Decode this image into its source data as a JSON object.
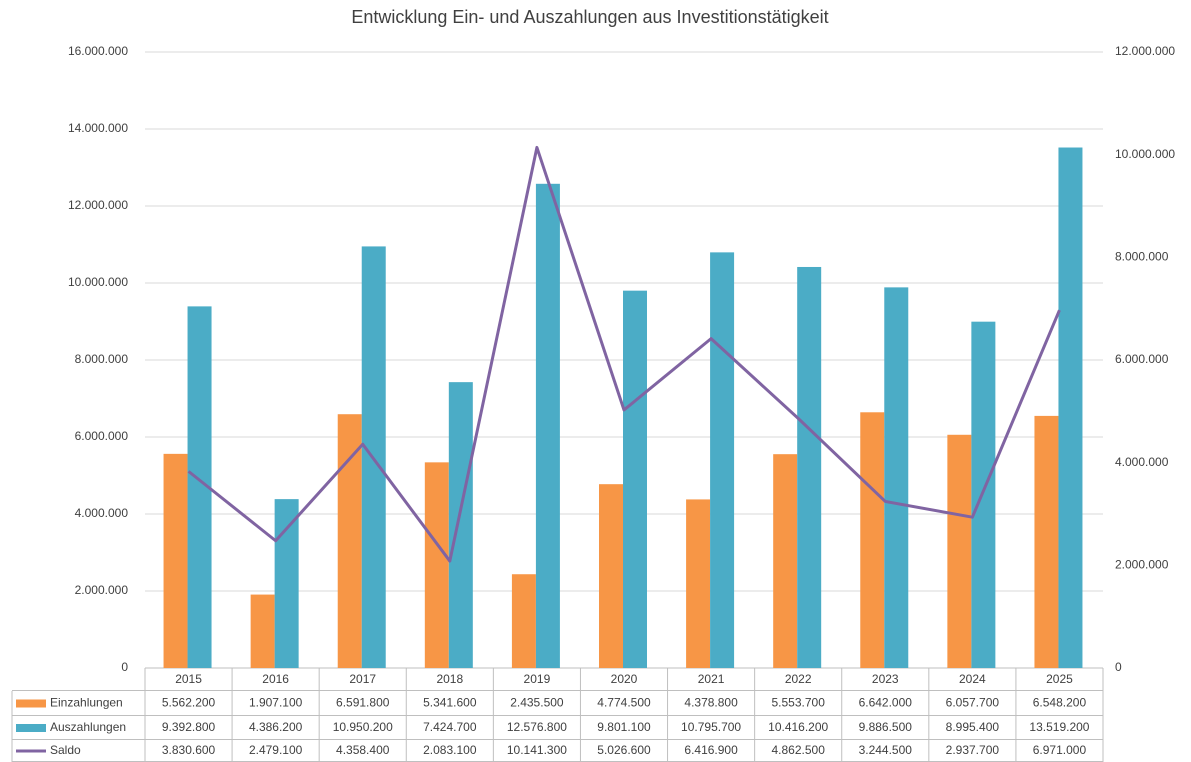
{
  "chart_data": {
    "type": "bar",
    "title": "Entwicklung Ein- und Auszahlungen aus Investitionstätigkeit",
    "categories": [
      "2015",
      "2016",
      "2017",
      "2018",
      "2019",
      "2020",
      "2021",
      "2022",
      "2023",
      "2024",
      "2025"
    ],
    "series": [
      {
        "name": "Einzahlungen",
        "type": "bar",
        "color": "#f79646",
        "values": [
          5562200,
          1907100,
          6591800,
          5341600,
          2435500,
          4774500,
          4378800,
          5553700,
          6642000,
          6057700,
          6548200
        ],
        "value_labels": [
          "5.562.200",
          "1.907.100",
          "6.591.800",
          "5.341.600",
          "2.435.500",
          "4.774.500",
          "4.378.800",
          "5.553.700",
          "6.642.000",
          "6.057.700",
          "6.548.200"
        ]
      },
      {
        "name": "Auszahlungen",
        "type": "bar",
        "color": "#4bacc6",
        "values": [
          9392800,
          4386200,
          10950200,
          7424700,
          12576800,
          9801100,
          10795700,
          10416200,
          9886500,
          8995400,
          13519200
        ],
        "value_labels": [
          "9.392.800",
          "4.386.200",
          "10.950.200",
          "7.424.700",
          "12.576.800",
          "9.801.100",
          "10.795.700",
          "10.416.200",
          "9.886.500",
          "8.995.400",
          "13.519.200"
        ]
      },
      {
        "name": "Saldo",
        "type": "line",
        "axis": "y2",
        "color": "#8064a2",
        "values": [
          3830600,
          2479100,
          4358400,
          2083100,
          10141300,
          5026600,
          6416900,
          4862500,
          3244500,
          2937700,
          6971000
        ],
        "value_labels": [
          "3.830.600",
          "2.479.100",
          "4.358.400",
          "2.083.100",
          "10.141.300",
          "5.026.600",
          "6.416.900",
          "4.862.500",
          "3.244.500",
          "2.937.700",
          "6.971.000"
        ]
      }
    ],
    "ylim": [
      0,
      16000000
    ],
    "yticks": [
      0,
      {
        "value": 2000000,
        "label": "2.000.000"
      },
      {
        "value": 4000000,
        "label": "4.000.000"
      },
      {
        "value": 6000000,
        "label": "6.000.000"
      },
      {
        "value": 8000000,
        "label": "8.000.000"
      },
      {
        "value": 10000000,
        "label": "10.000.000"
      },
      {
        "value": 12000000,
        "label": "12.000.000"
      },
      {
        "value": 14000000,
        "label": "14.000.000"
      },
      {
        "value": 16000000,
        "label": "16.000.000"
      }
    ],
    "y2lim": [
      0,
      12000000
    ],
    "y2ticks": [
      0,
      {
        "value": 2000000,
        "label": "2.000.000"
      },
      {
        "value": 4000000,
        "label": "4.000.000"
      },
      {
        "value": 6000000,
        "label": "6.000.000"
      },
      {
        "value": 8000000,
        "label": "8.000.000"
      },
      {
        "value": 10000000,
        "label": "10.000.000"
      },
      {
        "value": 12000000,
        "label": "12.000.000"
      }
    ],
    "grid": true
  }
}
